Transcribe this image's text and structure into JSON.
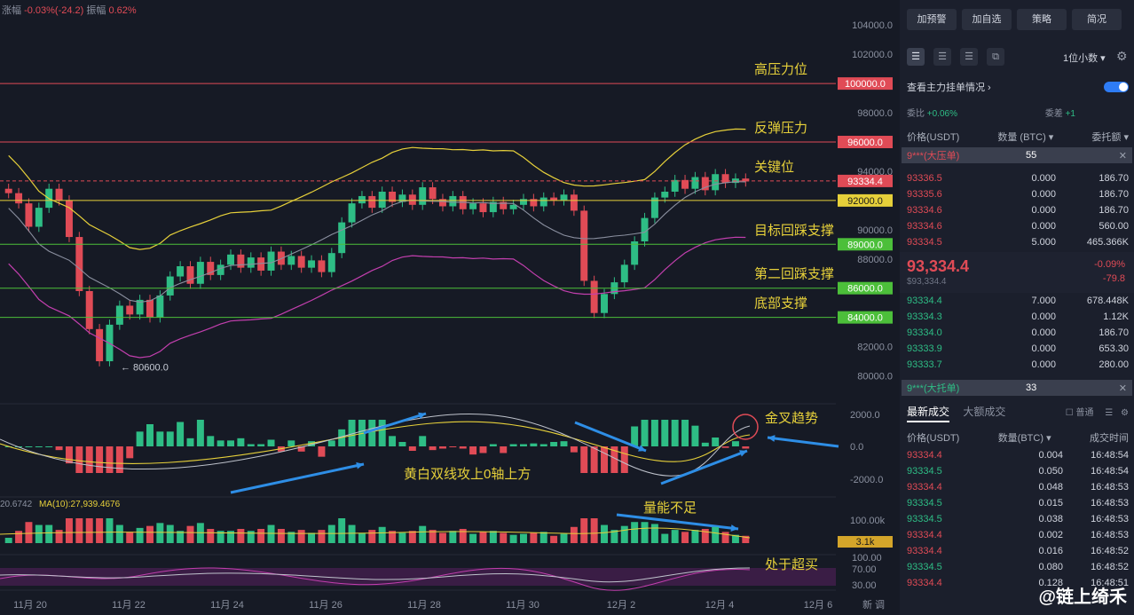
{
  "topbar": {
    "change_label": "涨幅",
    "change_value": "-0.03%(-24.2)",
    "amp_label": "振幅",
    "amp_value": "0.62%"
  },
  "colors": {
    "up": "#2ebd85",
    "down": "#e04b56",
    "yellow": "#e6d03a",
    "bg": "#161a25"
  },
  "chart_data": {
    "type": "candlestick",
    "price_axis": {
      "ticks": [
        "104000.0",
        "102000.0",
        "98000.0",
        "94000.0",
        "90000.0",
        "88000.0",
        "82000.0",
        "80000.0"
      ],
      "ylim": [
        79000,
        104500
      ]
    },
    "x_labels": [
      "11月 20",
      "11月 22",
      "11月 24",
      "11月 26",
      "11月 28",
      "11月 30",
      "12月 2",
      "12月 4",
      "12月 6"
    ],
    "levels": [
      {
        "price": 100000,
        "label": "100000.0",
        "color": "#e04b56",
        "annotation": "高压力位"
      },
      {
        "price": 96000,
        "label": "96000.0",
        "color": "#e04b56",
        "annotation": "反弹压力"
      },
      {
        "price": 93334.4,
        "label": "93334.4",
        "color": "#e04b56",
        "annotation": "关键位",
        "dashed": true
      },
      {
        "price": 92000,
        "label": "92000.0",
        "color": "#e6d03a",
        "annotation": ""
      },
      {
        "price": 89000,
        "label": "89000.0",
        "color": "#4cbf3a",
        "annotation": "目标回踩支撑"
      },
      {
        "price": 86000,
        "label": "86000.0",
        "color": "#4cbf3a",
        "annotation": "第二回踩支撑"
      },
      {
        "price": 84000,
        "label": "84000.0",
        "color": "#4cbf3a",
        "annotation": "底部支撑"
      }
    ],
    "low_marker": "← 80600.0",
    "candles": [
      92500,
      91800,
      90200,
      91500,
      92800,
      92000,
      89500,
      85800,
      83200,
      81000,
      83500,
      84800,
      84200,
      85200,
      84000,
      85500,
      86800,
      87500,
      86300,
      87800,
      86900,
      87600,
      88300,
      87400,
      88100,
      87200,
      88500,
      87600,
      88200,
      87400,
      87900,
      87100,
      88400,
      90500,
      91800,
      92300,
      91500,
      92600,
      91900,
      92400,
      91700,
      92900,
      92100,
      91600,
      92300,
      91400,
      91800,
      91200,
      91900,
      91400,
      91700,
      92100,
      91600,
      92200,
      92000,
      92400,
      91300,
      86500,
      84300,
      85600,
      86400,
      87600,
      89200,
      90800,
      92200,
      92600,
      93400,
      92800,
      93600,
      92700,
      93800,
      93200,
      93500,
      93300
    ],
    "bollinger_upper_ref": "yellow line",
    "macd_axis": {
      "ticks": [
        "2000.0",
        "0.0",
        "-2000.0"
      ]
    },
    "volume": {
      "ma_label": "MA(10):27,939.4676",
      "left_value": "20.6742",
      "ticks": [
        "100.00k",
        "3.1k"
      ]
    },
    "rsi": {
      "ticks": [
        "100.00",
        "70.00",
        "30.00"
      ]
    },
    "annotations": {
      "golden_cross": "金叉趋势",
      "dual_line": "黄白双线攻上0轴上方",
      "low_volume": "量能不足",
      "overbought": "处于超买"
    },
    "bottom_axis_right": "新 调"
  },
  "sidebar": {
    "buttons": [
      "加预警",
      "加自选",
      "策略",
      "简况"
    ],
    "decimal": "1位小数",
    "main_orders": "查看主力挂单情况",
    "ratio_label": "委比",
    "ratio_value": "+0.06%",
    "diff_label": "委差",
    "diff_value": "+1",
    "headers": [
      "价格(USDT)",
      "数量 (BTC)",
      "委托额"
    ],
    "big_sell": {
      "label": "9***(大压单)",
      "qty": "55"
    },
    "asks": [
      {
        "p": "93336.5",
        "q": "0.000",
        "t": "186.70"
      },
      {
        "p": "93335.6",
        "q": "0.000",
        "t": "186.70"
      },
      {
        "p": "93334.6",
        "q": "0.000",
        "t": "186.70"
      },
      {
        "p": "93334.6",
        "q": "0.000",
        "t": "560.00"
      },
      {
        "p": "93334.5",
        "q": "5.000",
        "t": "465.366K"
      }
    ],
    "last_price": "93,334.4",
    "last_sub": "$93,334.4",
    "last_change": "-0.09%",
    "last_change2": "-79.8",
    "bids": [
      {
        "p": "93334.4",
        "q": "7.000",
        "t": "678.448K"
      },
      {
        "p": "93334.3",
        "q": "0.000",
        "t": "1.12K"
      },
      {
        "p": "93334.0",
        "q": "0.000",
        "t": "186.70"
      },
      {
        "p": "93333.9",
        "q": "0.000",
        "t": "653.30"
      },
      {
        "p": "93333.7",
        "q": "0.000",
        "t": "280.00"
      }
    ],
    "big_buy": {
      "label": "9***(大托单)",
      "qty": "33"
    },
    "trade_tabs": [
      "最新成交",
      "大额成交"
    ],
    "normal_label": "普通",
    "trade_headers": [
      "价格(USDT)",
      "数量(BTC)",
      "成交时间"
    ],
    "trades": [
      {
        "p": "93334.4",
        "q": "0.004",
        "t": "16:48:54",
        "side": "down"
      },
      {
        "p": "93334.5",
        "q": "0.050",
        "t": "16:48:54",
        "side": "up"
      },
      {
        "p": "93334.4",
        "q": "0.048",
        "t": "16:48:53",
        "side": "down"
      },
      {
        "p": "93334.5",
        "q": "0.015",
        "t": "16:48:53",
        "side": "up"
      },
      {
        "p": "93334.5",
        "q": "0.038",
        "t": "16:48:53",
        "side": "up"
      },
      {
        "p": "93334.4",
        "q": "0.002",
        "t": "16:48:53",
        "side": "down"
      },
      {
        "p": "93334.4",
        "q": "0.016",
        "t": "16:48:52",
        "side": "down"
      },
      {
        "p": "93334.5",
        "q": "0.080",
        "t": "16:48:52",
        "side": "up"
      },
      {
        "p": "93334.4",
        "q": "0.128",
        "t": "16:48:51",
        "side": "down"
      }
    ],
    "watermark": "@链上绮禾"
  }
}
